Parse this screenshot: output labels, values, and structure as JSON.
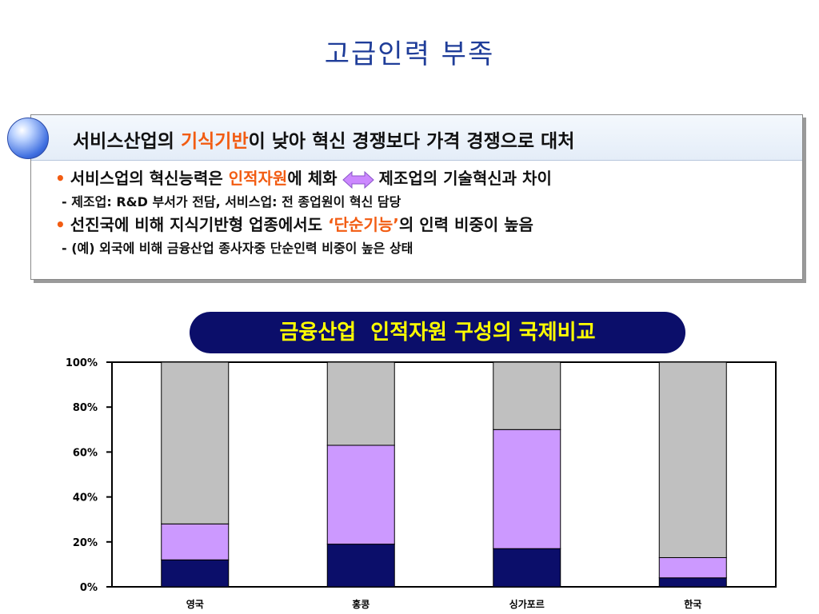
{
  "slide_title": "고급인력 부족",
  "panel": {
    "headline_before": "서비스산업의 ",
    "headline_highlight": "기식기반",
    "headline_after": "이 낮아 혁신 경쟁보다 가격 경쟁으로 대처",
    "bullet1_before": "서비스업의 혁신능력은 ",
    "bullet1_highlight": "인적자원",
    "bullet1_mid": "에 체화",
    "bullet1_after": "제조업의 기술혁신과 차이",
    "sub1": "- 제조업: R&D 부서가 전담, 서비스업: 전 종업원이 혁신 담당",
    "bullet2_before": "선진국에 비해 지식기반형 업종에서도 ",
    "bullet2_highlight": "‘단순기능’",
    "bullet2_after": "의 인력 비중이 높음",
    "sub2": "- (예) 외국에 비해 금융산업 종사자중 단순인력 비중이 높은 상태"
  },
  "chart_data": {
    "type": "bar",
    "stacked": true,
    "title": "금융산업  인적자원 구성의 국제비교",
    "categories": [
      "영국",
      "홍콩",
      "싱가포르",
      "한국"
    ],
    "y_tick_labels": [
      "0%",
      "20%",
      "40%",
      "60%",
      "80%",
      "100%"
    ],
    "ylim": [
      0,
      100
    ],
    "series": [
      {
        "values": [
          12,
          19,
          17,
          4
        ],
        "color": "#0b0e6a"
      },
      {
        "values": [
          16,
          44,
          53,
          9
        ],
        "color": "#cc99ff"
      },
      {
        "values": [
          72,
          37,
          30,
          87
        ],
        "color": "#c0c0c0"
      }
    ]
  }
}
